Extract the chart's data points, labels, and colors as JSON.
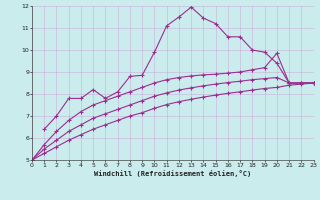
{
  "xlabel": "Windchill (Refroidissement éolien,°C)",
  "background_color": "#caeced",
  "line_color": "#9b2d8e",
  "grid_color": "#b0b0b0",
  "xlim": [
    0,
    23
  ],
  "ylim": [
    5,
    12
  ],
  "xticks": [
    0,
    1,
    2,
    3,
    4,
    5,
    6,
    7,
    8,
    9,
    10,
    11,
    12,
    13,
    14,
    15,
    16,
    17,
    18,
    19,
    20,
    21,
    22,
    23
  ],
  "yticks": [
    5,
    6,
    7,
    8,
    9,
    10,
    11,
    12
  ],
  "line1_x": [
    1,
    2,
    3,
    4,
    5,
    6,
    7,
    8,
    9,
    10,
    11,
    12,
    13,
    14,
    15,
    16,
    17,
    18,
    19,
    20,
    21,
    22,
    23
  ],
  "line1_y": [
    6.4,
    7.0,
    7.8,
    7.8,
    8.2,
    7.8,
    8.1,
    8.8,
    8.85,
    9.9,
    11.1,
    11.5,
    11.95,
    11.45,
    11.2,
    10.6,
    10.6,
    10.0,
    9.9,
    9.4,
    8.5,
    8.5,
    8.5
  ],
  "line2_x": [
    0,
    1,
    2,
    3,
    4,
    5,
    6,
    7,
    8,
    9,
    10,
    11,
    12,
    13,
    14,
    15,
    16,
    17,
    18,
    19,
    20,
    21,
    22,
    23
  ],
  "line2_y": [
    5.0,
    5.7,
    6.3,
    6.8,
    7.2,
    7.5,
    7.7,
    7.9,
    8.1,
    8.3,
    8.5,
    8.65,
    8.75,
    8.82,
    8.87,
    8.9,
    8.95,
    9.0,
    9.1,
    9.2,
    9.85,
    8.5,
    8.5,
    8.5
  ],
  "line3_x": [
    0,
    1,
    2,
    3,
    4,
    5,
    6,
    7,
    8,
    9,
    10,
    11,
    12,
    13,
    14,
    15,
    16,
    17,
    18,
    19,
    20,
    21,
    22,
    23
  ],
  "line3_y": [
    5.0,
    5.5,
    5.9,
    6.3,
    6.6,
    6.9,
    7.1,
    7.3,
    7.5,
    7.7,
    7.9,
    8.05,
    8.18,
    8.28,
    8.37,
    8.45,
    8.52,
    8.58,
    8.65,
    8.7,
    8.75,
    8.5,
    8.5,
    8.5
  ],
  "line4_x": [
    0,
    1,
    2,
    3,
    4,
    5,
    6,
    7,
    8,
    9,
    10,
    11,
    12,
    13,
    14,
    15,
    16,
    17,
    18,
    19,
    20,
    21,
    22,
    23
  ],
  "line4_y": [
    5.0,
    5.3,
    5.6,
    5.9,
    6.15,
    6.4,
    6.6,
    6.8,
    7.0,
    7.15,
    7.35,
    7.52,
    7.65,
    7.76,
    7.86,
    7.95,
    8.03,
    8.1,
    8.18,
    8.25,
    8.3,
    8.4,
    8.45,
    8.5
  ]
}
